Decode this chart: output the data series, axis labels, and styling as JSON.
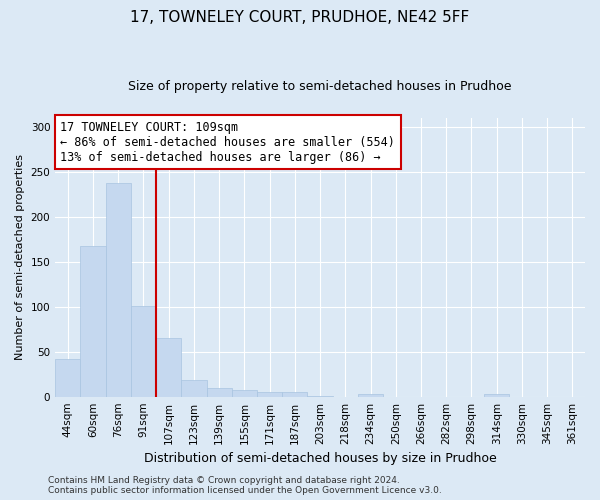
{
  "title": "17, TOWNELEY COURT, PRUDHOE, NE42 5FF",
  "subtitle": "Size of property relative to semi-detached houses in Prudhoe",
  "xlabel": "Distribution of semi-detached houses by size in Prudhoe",
  "ylabel": "Number of semi-detached properties",
  "categories": [
    "44sqm",
    "60sqm",
    "76sqm",
    "91sqm",
    "107sqm",
    "123sqm",
    "139sqm",
    "155sqm",
    "171sqm",
    "187sqm",
    "203sqm",
    "218sqm",
    "234sqm",
    "250sqm",
    "266sqm",
    "282sqm",
    "298sqm",
    "314sqm",
    "330sqm",
    "345sqm",
    "361sqm"
  ],
  "values": [
    42,
    168,
    238,
    101,
    65,
    18,
    10,
    7,
    5,
    5,
    1,
    0,
    3,
    0,
    0,
    0,
    0,
    3,
    0,
    0,
    0
  ],
  "bar_color": "#c5d8ef",
  "bar_edge_color": "#a8c4e0",
  "grid_color": "#ffffff",
  "bg_color": "#dce9f5",
  "plot_bg_color": "#dce9f5",
  "vline_color": "#cc0000",
  "vline_x": 4,
  "annotation_line1": "17 TOWNELEY COURT: 109sqm",
  "annotation_line2": "← 86% of semi-detached houses are smaller (554)",
  "annotation_line3": "13% of semi-detached houses are larger (86) →",
  "annotation_box_color": "#ffffff",
  "annotation_border_color": "#cc0000",
  "footer_line1": "Contains HM Land Registry data © Crown copyright and database right 2024.",
  "footer_line2": "Contains public sector information licensed under the Open Government Licence v3.0.",
  "ylim": [
    0,
    310
  ],
  "yticks": [
    0,
    50,
    100,
    150,
    200,
    250,
    300
  ],
  "title_fontsize": 11,
  "subtitle_fontsize": 9,
  "xlabel_fontsize": 9,
  "ylabel_fontsize": 8,
  "tick_fontsize": 7.5,
  "footer_fontsize": 6.5,
  "annotation_fontsize": 8.5
}
